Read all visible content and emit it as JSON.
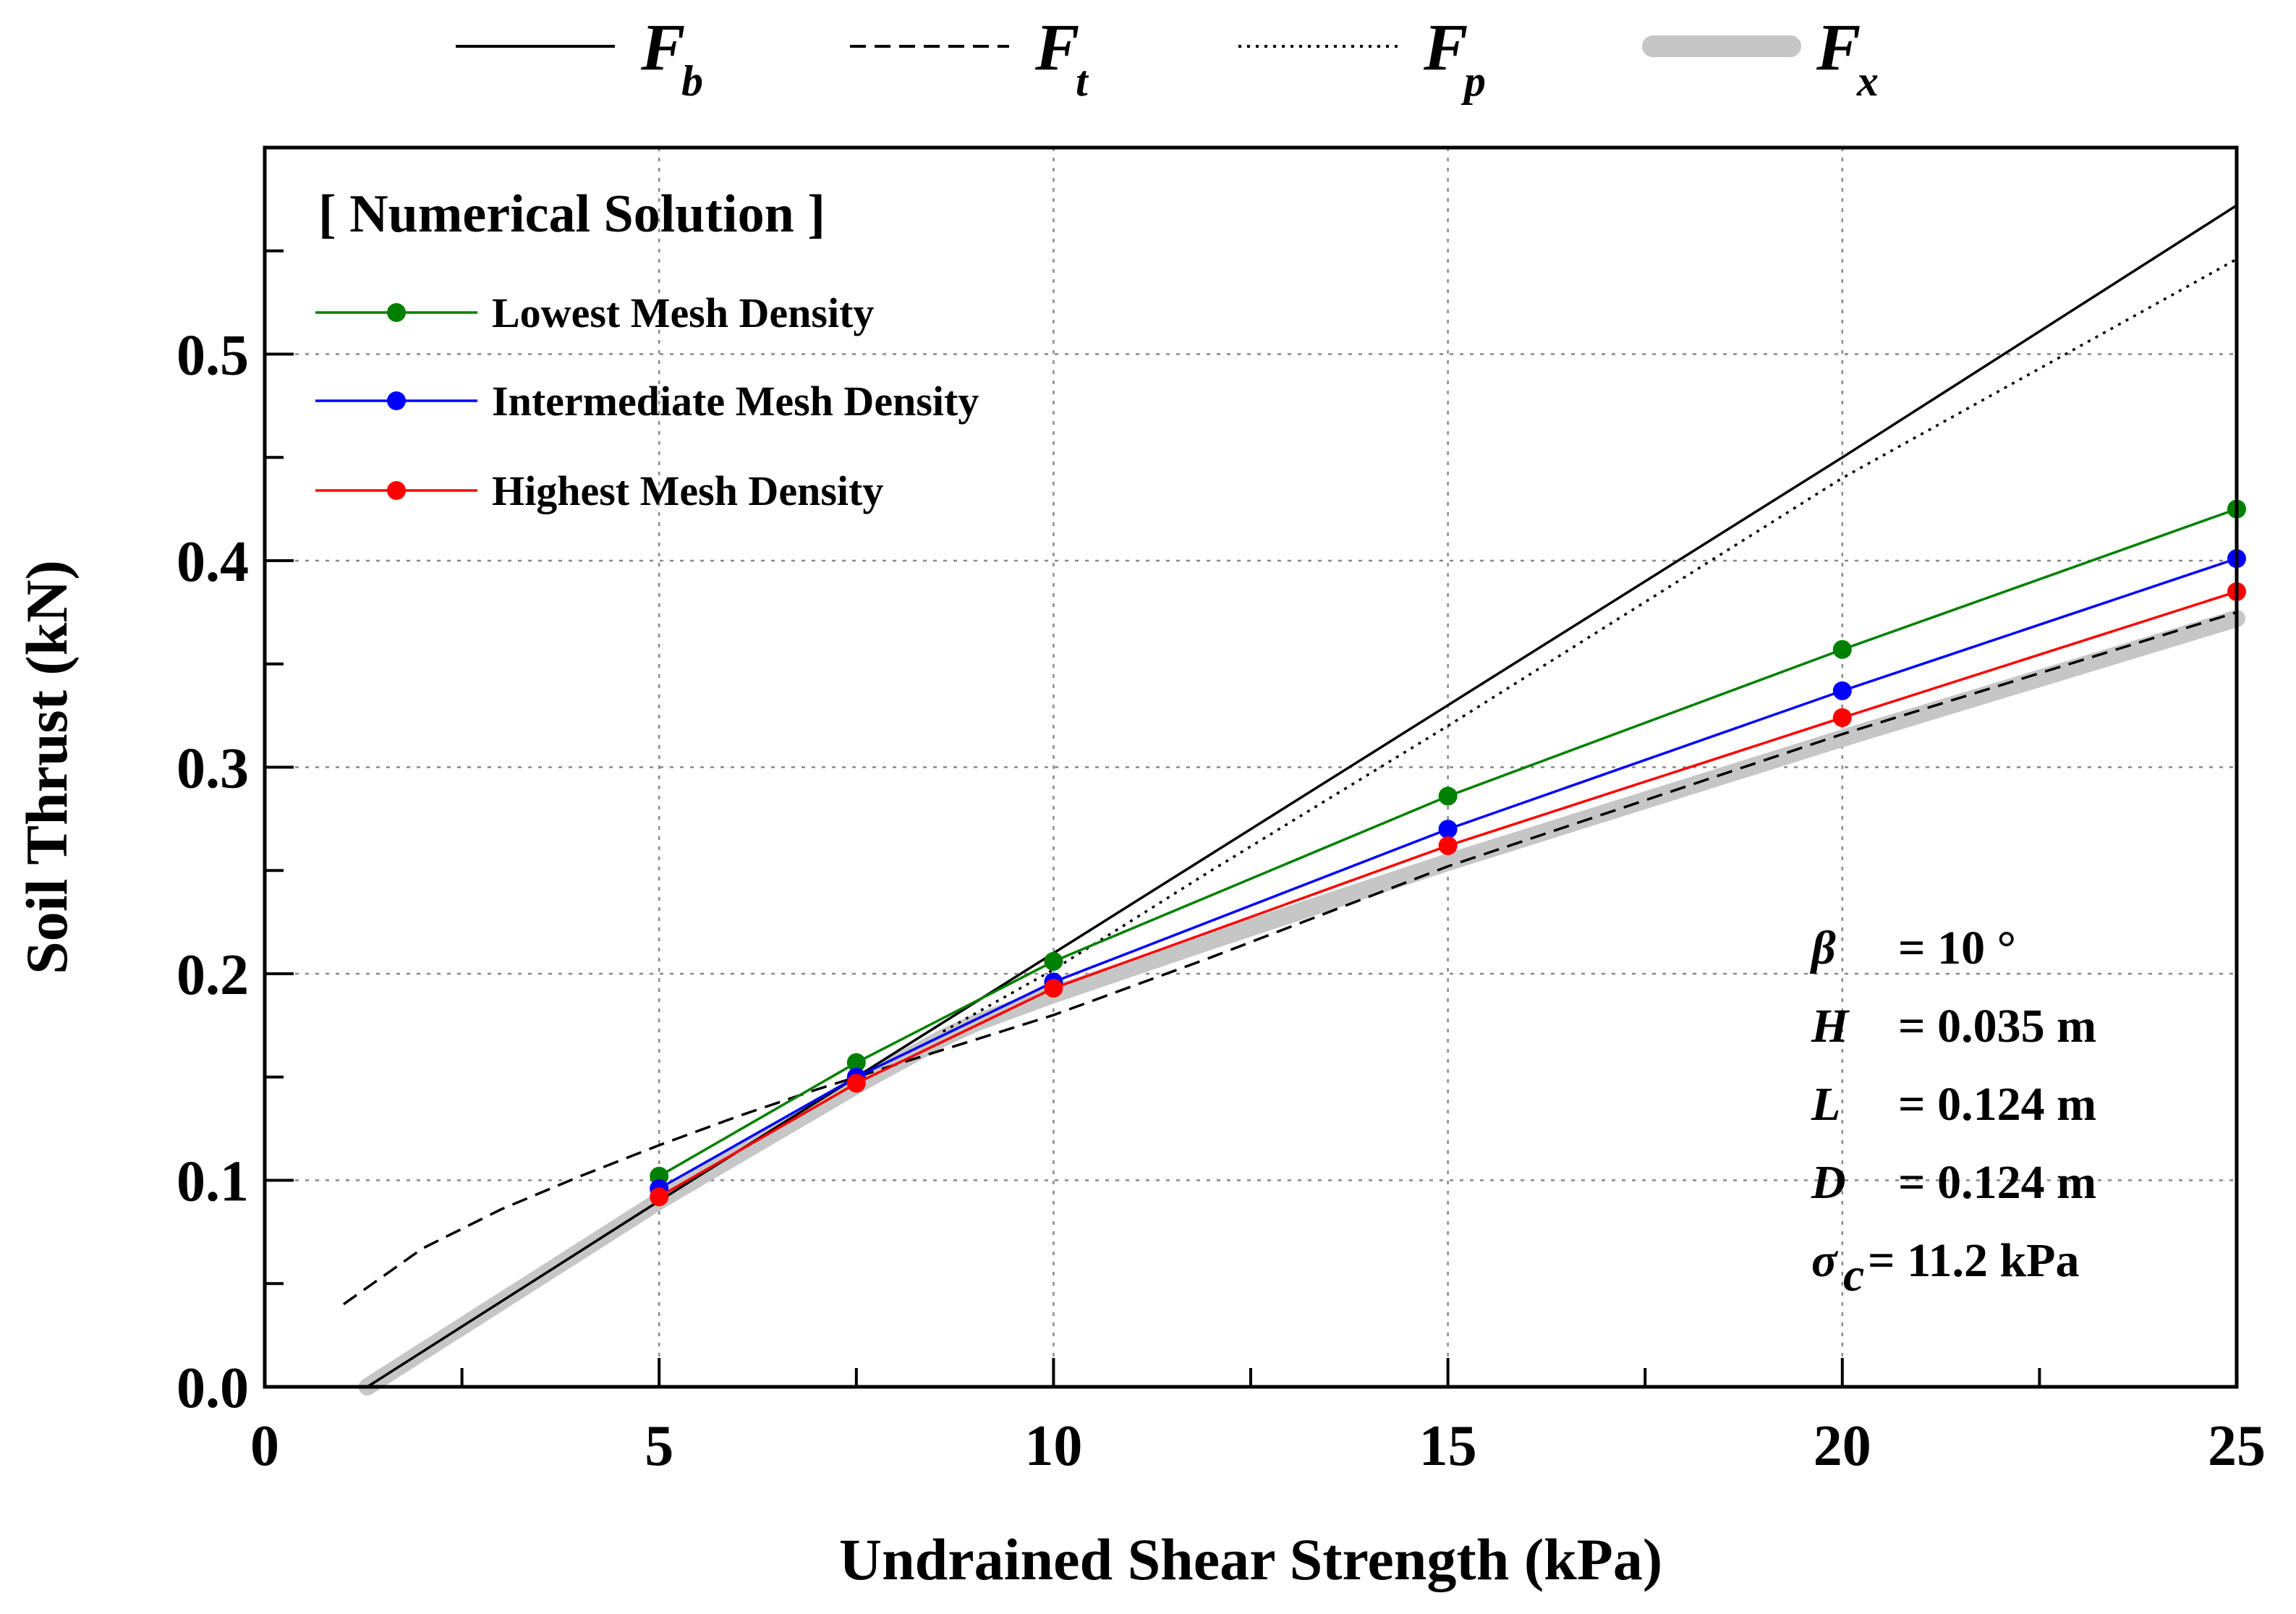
{
  "chart_data": {
    "type": "line",
    "title": "",
    "xlabel": "Undrained Shear Strength (kPa)",
    "ylabel": "Soil Thrust (kN)",
    "xlim": [
      0,
      25
    ],
    "ylim": [
      0,
      0.6
    ],
    "xticks": [
      0,
      5,
      10,
      15,
      20,
      25
    ],
    "xtick_labels": [
      "0",
      "5",
      "10",
      "15",
      "20",
      "25"
    ],
    "yticks": [
      0.0,
      0.1,
      0.2,
      0.3,
      0.4,
      0.5
    ],
    "ytick_labels": [
      "0.0",
      "0.1",
      "0.2",
      "0.3",
      "0.4",
      "0.5"
    ],
    "grid": true,
    "analytic_legend": [
      {
        "key": "Fb",
        "main": "F",
        "sub": "b",
        "style": "solid"
      },
      {
        "key": "Ft",
        "main": "F",
        "sub": "t",
        "style": "dashed"
      },
      {
        "key": "Fp",
        "main": "F",
        "sub": "p",
        "style": "dotted"
      },
      {
        "key": "Fx",
        "main": "F",
        "sub": "x",
        "style": "thick-gray"
      }
    ],
    "analytic_curves": [
      {
        "key": "Fb",
        "x": [
          1.3,
          5,
          10,
          15,
          20,
          25
        ],
        "y": [
          0.0,
          0.09,
          0.21,
          0.33,
          0.45,
          0.572
        ]
      },
      {
        "key": "Ft",
        "x": [
          1,
          2,
          3,
          4,
          5,
          6,
          7,
          8,
          9,
          10,
          12,
          15,
          20,
          25
        ],
        "y": [
          0.04,
          0.067,
          0.086,
          0.102,
          0.117,
          0.131,
          0.144,
          0.156,
          0.168,
          0.18,
          0.208,
          0.252,
          0.316,
          0.375
        ]
      },
      {
        "key": "Fp",
        "x": [
          8.6,
          10,
          12,
          15,
          20,
          25
        ],
        "y": [
          0.172,
          0.202,
          0.25,
          0.32,
          0.44,
          0.546
        ]
      },
      {
        "key": "Fx",
        "x": [
          1.3,
          5,
          7.5,
          8.6,
          9,
          10,
          12,
          15,
          20,
          25
        ],
        "y": [
          0.0,
          0.09,
          0.146,
          0.169,
          0.176,
          0.19,
          0.216,
          0.254,
          0.314,
          0.372
        ]
      }
    ],
    "legend_title": "[ Numerical Solution ]",
    "series": [
      {
        "name": "Lowest Mesh Density",
        "color": "#008000",
        "x": [
          5,
          7.5,
          10,
          15,
          20,
          25
        ],
        "values": [
          0.102,
          0.157,
          0.206,
          0.286,
          0.357,
          0.425
        ]
      },
      {
        "name": "Intermediate Mesh Density",
        "color": "#0000ff",
        "x": [
          5,
          7.5,
          10,
          15,
          20,
          25
        ],
        "values": [
          0.096,
          0.15,
          0.196,
          0.27,
          0.337,
          0.401
        ]
      },
      {
        "name": "Highest Mesh Density",
        "color": "#ff0000",
        "x": [
          5,
          7.5,
          10,
          15,
          20,
          25
        ],
        "values": [
          0.092,
          0.147,
          0.193,
          0.262,
          0.324,
          0.385
        ]
      }
    ],
    "parameters": [
      {
        "symbol": "β",
        "sub": "",
        "text": "= 10 °"
      },
      {
        "symbol": "H",
        "sub": "",
        "text": "= 0.035 m"
      },
      {
        "symbol": "L",
        "sub": "",
        "text": "= 0.124 m"
      },
      {
        "symbol": "D",
        "sub": "",
        "text": "= 0.124 m"
      },
      {
        "symbol": "σ",
        "sub": "c",
        "text": "= 11.2 kPa"
      }
    ]
  }
}
